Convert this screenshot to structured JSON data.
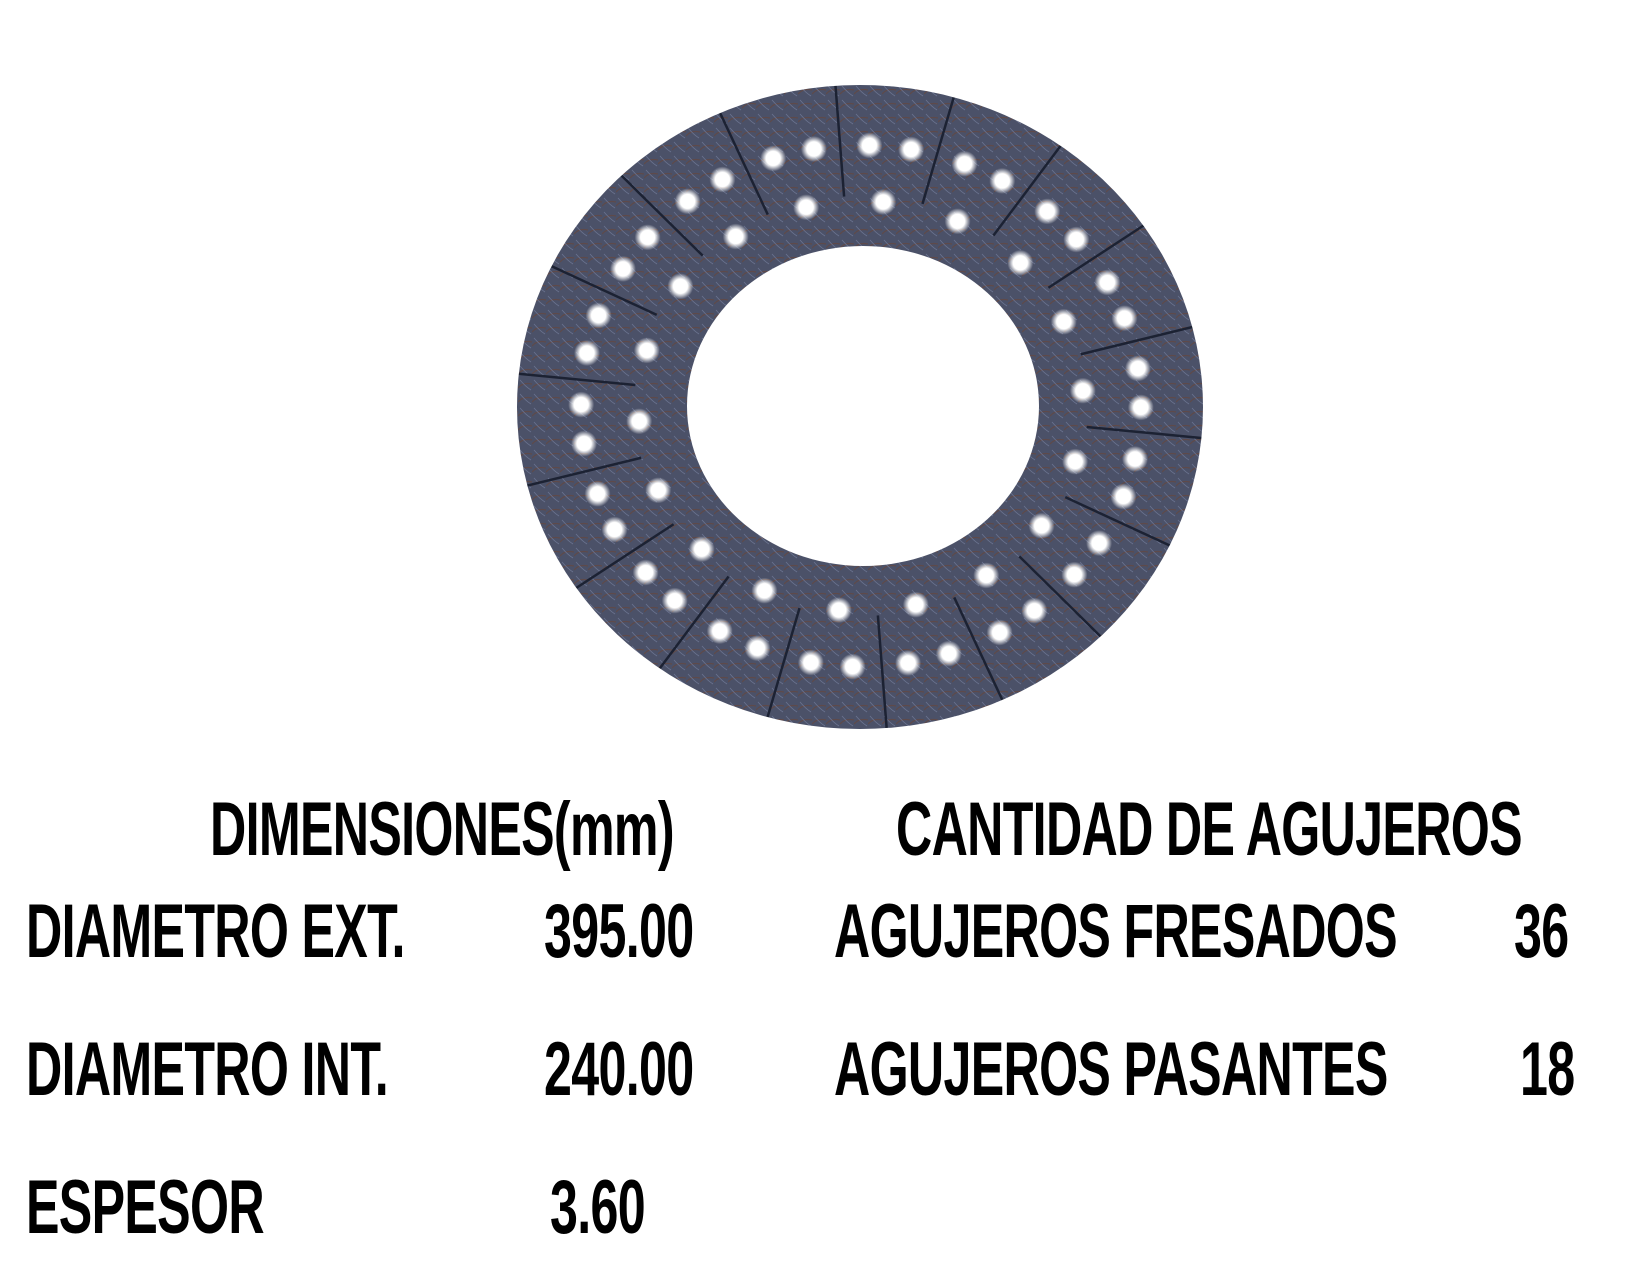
{
  "headers": {
    "dimensions": "DIMENSIONES(mm)",
    "holes": "CANTIDAD DE AGUJEROS"
  },
  "dimensions": [
    {
      "label": "DIAMETRO EXT.",
      "value": "395.00"
    },
    {
      "label": "DIAMETRO INT.",
      "value": "240.00"
    },
    {
      "label": "ESPESOR",
      "value": "3.60"
    }
  ],
  "holes": [
    {
      "label": "AGUJEROS FRESADOS",
      "value": "36"
    },
    {
      "label": "AGUJEROS PASANTES",
      "value": "18"
    }
  ],
  "colors": {
    "disc": "#4b5168",
    "text": "#000000",
    "background": "#ffffff"
  }
}
